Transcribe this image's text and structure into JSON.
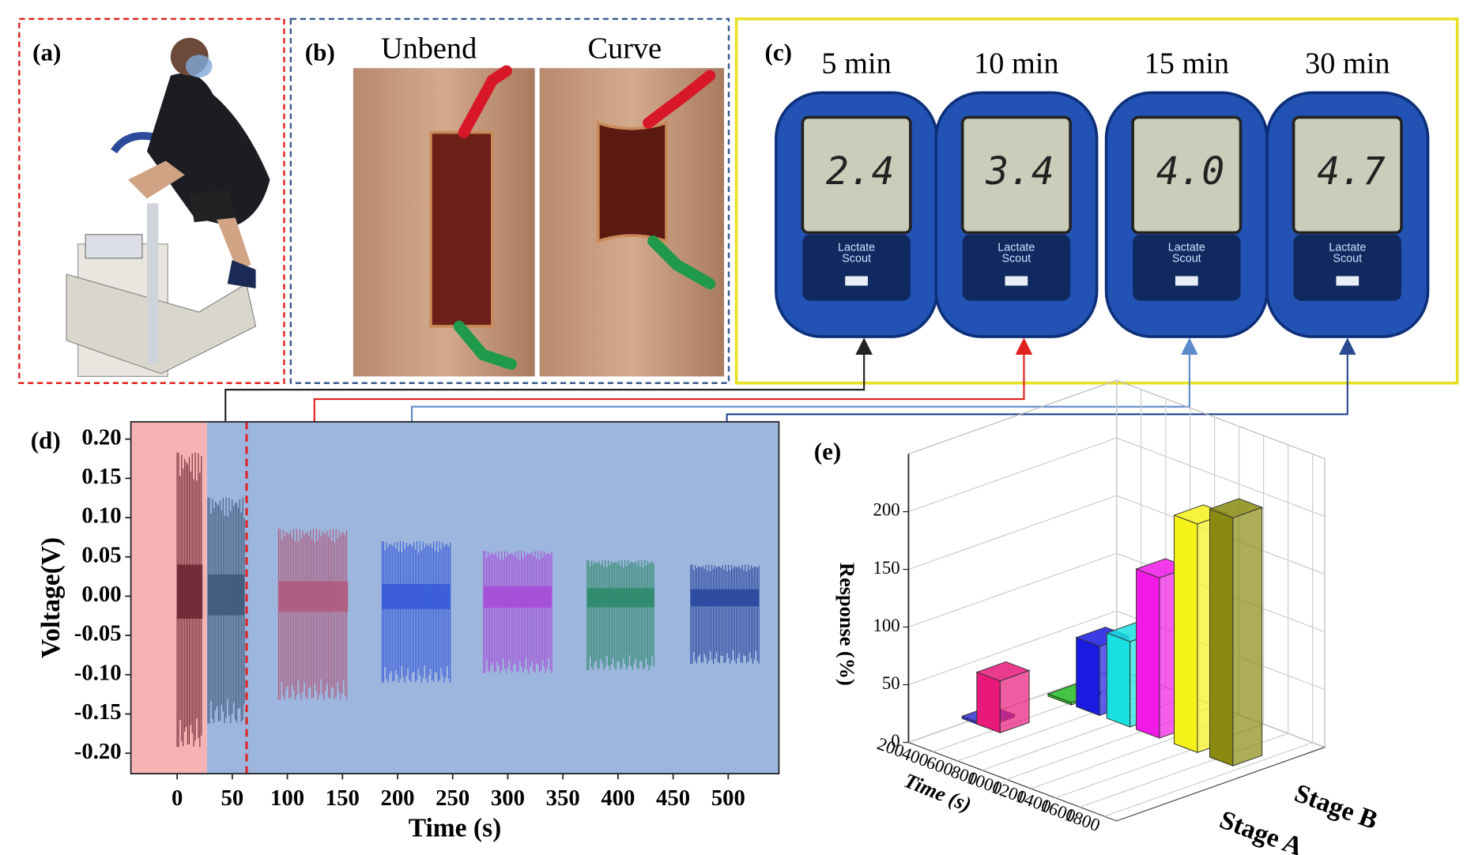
{
  "panels": {
    "a": {
      "label": "(a)"
    },
    "b": {
      "label": "(b)",
      "captions": [
        "Unbend",
        "Curve"
      ]
    },
    "c": {
      "label": "(c)",
      "times": [
        "5 min",
        "10 min",
        "15 min",
        "30 min"
      ],
      "readings": [
        "2.4",
        "3.4",
        "4.0",
        "4.7"
      ],
      "brand": "Lactate",
      "model": "Scout"
    },
    "d": {
      "label": "(d)"
    },
    "e": {
      "label": "(e)"
    }
  },
  "chart_data": [
    {
      "type": "waveform",
      "ylabel": "Voltage(V)",
      "xlabel": "Time (s)",
      "xlim": [
        -42,
        546
      ],
      "ylim": [
        -0.226,
        0.222
      ],
      "xticks": [
        0,
        50,
        100,
        150,
        200,
        250,
        300,
        350,
        400,
        450,
        500
      ],
      "yticks": [
        {
          "value": 0.2,
          "label": "0.20"
        },
        0.15,
        {
          "value": 0.1,
          "label": "0.10"
        },
        0.05,
        {
          "value": 0,
          "label": "0.00"
        },
        -0.05,
        {
          "value": -0.1,
          "label": "-0.10"
        },
        -0.15,
        {
          "value": -0.2,
          "label": "-0.20"
        }
      ],
      "regions": [
        {
          "from": -42,
          "to": 27,
          "color": "#f7b3b3"
        },
        {
          "from": 27,
          "to": 546,
          "color": "#9db6dd"
        }
      ],
      "marker_x": 63,
      "marker_color": "#e02020",
      "bursts": [
        {
          "start": 0,
          "end": 23,
          "max": 0.183,
          "min": -0.192,
          "color": "#6a2432"
        },
        {
          "start": 28,
          "end": 61,
          "max": 0.126,
          "min": -0.162,
          "color": "#3c5878"
        },
        {
          "start": 92,
          "end": 155,
          "max": 0.086,
          "min": -0.132,
          "color": "#b0587a"
        },
        {
          "start": 186,
          "end": 248,
          "max": 0.07,
          "min": -0.11,
          "color": "#3558d8"
        },
        {
          "start": 278,
          "end": 340,
          "max": 0.058,
          "min": -0.098,
          "color": "#a64ad8"
        },
        {
          "start": 372,
          "end": 433,
          "max": 0.046,
          "min": -0.094,
          "color": "#2a8a68"
        },
        {
          "start": 466,
          "end": 528,
          "max": 0.04,
          "min": -0.086,
          "color": "#26449c"
        }
      ]
    },
    {
      "type": "bar3d",
      "zlabel": "Response (%)",
      "xlabel": "Time (s)",
      "zlim": [
        0,
        250
      ],
      "zticks": [
        0,
        50,
        100,
        150,
        200
      ],
      "xlim": [
        200,
        1900
      ],
      "xticks": [
        200,
        400,
        600,
        800,
        1000,
        1200,
        1400,
        1600,
        1800
      ],
      "series": [
        {
          "name": "Stage A",
          "time": [
            240,
            360
          ],
          "values": [
            2,
            45
          ],
          "colors": [
            "#3030d0",
            "#e8197a"
          ]
        },
        {
          "name": "Stage B",
          "time": [
            330,
            560,
            810,
            1050,
            1360,
            1650
          ],
          "values": [
            2,
            60,
            74,
            139,
            198,
            215
          ],
          "colors": [
            "#22bb22",
            "#1a1ae0",
            "#19e0e0",
            "#f019e6",
            "#f4f219",
            "#8a8a10"
          ]
        }
      ]
    }
  ]
}
